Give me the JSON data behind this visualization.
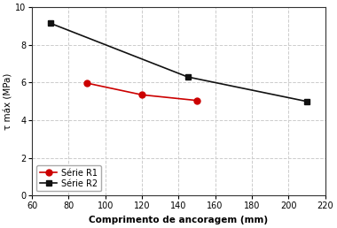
{
  "series": [
    {
      "label": "Série R1",
      "x": [
        90,
        120,
        150
      ],
      "y": [
        5.97,
        5.35,
        5.05
      ],
      "color": "#cc0000",
      "marker": "o",
      "markersize": 5,
      "linewidth": 1.2
    },
    {
      "label": "Série R2",
      "x": [
        70,
        145,
        210
      ],
      "y": [
        9.15,
        6.3,
        5.0
      ],
      "color": "#111111",
      "marker": "s",
      "markersize": 5,
      "linewidth": 1.2
    }
  ],
  "xlabel": "Comprimento de ancoragem (mm)",
  "ylabel": "τ máx (MPa)",
  "xlim": [
    60,
    220
  ],
  "ylim": [
    0,
    10
  ],
  "xticks": [
    60,
    80,
    100,
    120,
    140,
    160,
    180,
    200,
    220
  ],
  "yticks": [
    0,
    2,
    4,
    6,
    8,
    10
  ],
  "grid_color": "#cccccc",
  "grid_linestyle": "--",
  "legend_loc": "lower left",
  "background_color": "#ffffff"
}
